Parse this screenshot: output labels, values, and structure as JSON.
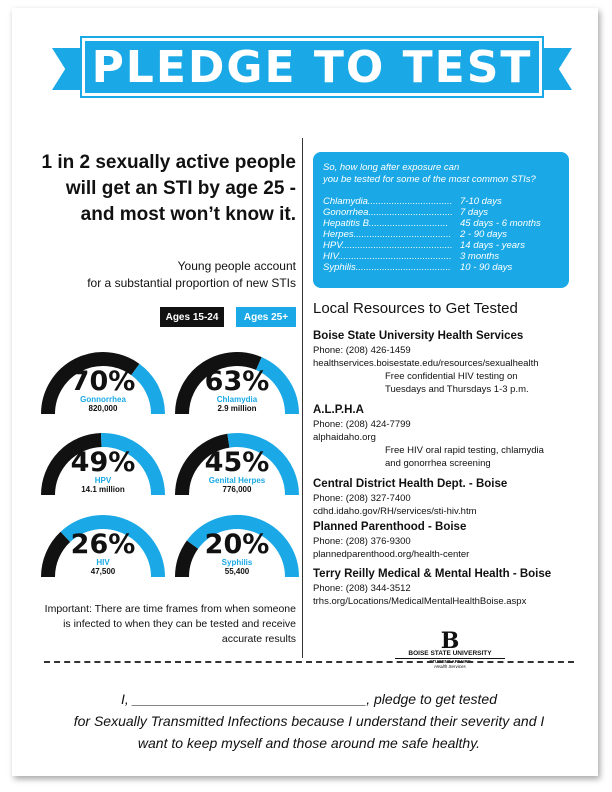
{
  "banner": {
    "title": "PLEDGE TO TEST"
  },
  "headline": {
    "lines": [
      "1 in 2 sexually active people",
      "will get an STI by age 25 -",
      "and most won’t know it."
    ],
    "sub_lines": [
      "Young people account",
      "for a substantial proportion of new STIs"
    ]
  },
  "legend": {
    "young": "Ages 15-24",
    "older": "Ages 25+"
  },
  "colors": {
    "accent": "#1aa9e6",
    "dark": "#111111"
  },
  "gauges": [
    {
      "pct": "70%",
      "name": "Gonnorrhea",
      "count": "820,000",
      "share": 0.7
    },
    {
      "pct": "63%",
      "name": "Chlamydia",
      "count": "2.9 million",
      "share": 0.63
    },
    {
      "pct": "49%",
      "name": "HPV",
      "count": "14.1 million",
      "share": 0.49
    },
    {
      "pct": "45%",
      "name": "Genital Herpes",
      "count": "776,000",
      "share": 0.45
    },
    {
      "pct": "26%",
      "name": "HIV",
      "count": "47,500",
      "share": 0.26
    },
    {
      "pct": "20%",
      "name": "Syphilis",
      "count": "55,400",
      "share": 0.2
    }
  ],
  "important": [
    "Important: There are time frames from when someone",
    "is infected to when they can be tested and receive",
    "accurate results"
  ],
  "window_box": {
    "question": [
      "So, how long after exposure can",
      "you be tested for some of the most common STIs?"
    ],
    "rows": [
      {
        "disease": "Chlamydia................................",
        "time": "7-10 days"
      },
      {
        "disease": "Gonorrhea................................",
        "time": "7 days"
      },
      {
        "disease": "Hepatitis B..............................",
        "time": "45 days - 6 months"
      },
      {
        "disease": "Herpes.....................................",
        "time": "2 - 90 days"
      },
      {
        "disease": "HPV..........................................",
        "time": "14 days - years"
      },
      {
        "disease": "HIV...........................................",
        "time": "3 months"
      },
      {
        "disease": "Syphilis....................................",
        "time": "10 - 90 days"
      }
    ]
  },
  "resources": {
    "title": "Local Resources to Get Tested",
    "items": [
      {
        "name": "Boise State University Health Services",
        "phone": "Phone: (208) 426-1459",
        "url": "healthservices.boisestate.edu/resources/sexualhealth",
        "note": [
          "Free confidential HIV testing on",
          "Tuesdays and Thursdays 1-3 p.m."
        ]
      },
      {
        "name": "A.L.P.H.A",
        "phone": "Phone: (208) 424-7799",
        "url": "alphaidaho.org",
        "note": [
          "Free HIV oral rapid testing, chlamydia",
          "and gonorrhea screening"
        ]
      },
      {
        "name": "Central District Health Dept. - Boise",
        "phone": "Phone: (208) 327-7400",
        "url": "cdhd.idaho.gov/RH/services/sti-hiv.htm",
        "note": []
      },
      {
        "name": "Planned Parenthood - Boise",
        "phone": "Phone: (208) 376-9300",
        "url": "plannedparenthood.org/health-center",
        "note": []
      },
      {
        "name": "Terry Reilly Medical & Mental Health - Boise",
        "phone": "Phone: (208) 344-3512",
        "url": "trhs.org/Locations/MedicalMentalHealthBoise.aspx",
        "note": []
      }
    ]
  },
  "logo": {
    "mark": "B",
    "name": "BOISE STATE UNIVERSITY",
    "unit": "STUDENT AFFAIRS",
    "dept": "Health Services"
  },
  "pledge": {
    "lines": [
      "I, ______________________________, pledge to get tested",
      "for Sexually Transmitted Infections because I understand their severity and I",
      "want to keep myself and those around me safe healthy."
    ]
  }
}
